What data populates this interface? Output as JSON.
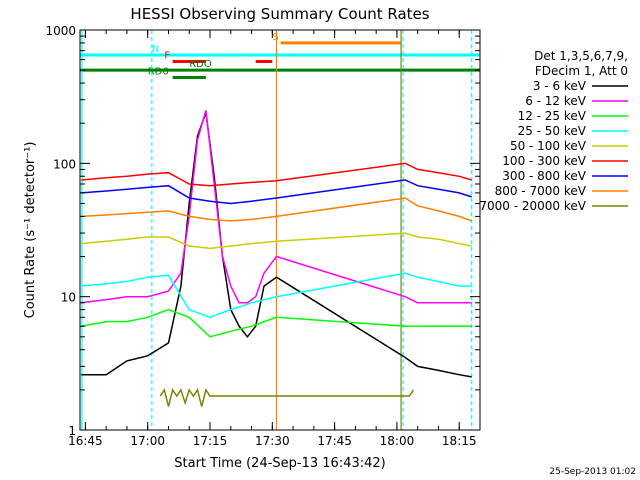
{
  "chart_data": {
    "type": "line",
    "title": "HESSI Observing Summary Count Rates",
    "xlabel": "Start Time (24-Sep-13 16:43:42)",
    "ylabel": "Count Rate (s⁻¹ detector⁻¹)",
    "yscale": "log",
    "xlim": [
      "16:43:42",
      "18:20:00"
    ],
    "ylim": [
      1,
      1000
    ],
    "x_ticks": [
      "16:45",
      "17:00",
      "17:15",
      "17:30",
      "17:45",
      "18:00",
      "18:15"
    ],
    "y_ticks": [
      "1",
      "10",
      "100",
      "1000"
    ],
    "footer_date": "25-Sep-2013 01:02",
    "legend": {
      "header_line1": "Det 1,3,5,6,7,9,",
      "header_line2": "FDecim 1, Att 0",
      "placement": "right"
    },
    "series": [
      {
        "name": "3 - 6 keV",
        "color": "#000000",
        "x": [
          "16:44",
          "16:50",
          "16:55",
          "17:00",
          "17:05",
          "17:08",
          "17:10",
          "17:12",
          "17:14",
          "17:16",
          "17:18",
          "17:20",
          "17:22",
          "17:24",
          "17:26",
          "17:28",
          "17:31",
          "18:02",
          "18:05",
          "18:10",
          "18:15",
          "18:18"
        ],
        "values": [
          2.6,
          2.6,
          3.3,
          3.6,
          4.5,
          12,
          50,
          160,
          240,
          80,
          20,
          8,
          6,
          5,
          6,
          12,
          14,
          3.5,
          3,
          2.8,
          2.6,
          2.5
        ]
      },
      {
        "name": "6 - 12 keV",
        "color": "#ff00ff",
        "x": [
          "16:44",
          "16:50",
          "16:55",
          "17:00",
          "17:05",
          "17:08",
          "17:10",
          "17:12",
          "17:14",
          "17:16",
          "17:18",
          "17:20",
          "17:22",
          "17:24",
          "17:26",
          "17:28",
          "17:31",
          "18:02",
          "18:05",
          "18:10",
          "18:15",
          "18:18"
        ],
        "values": [
          9,
          9.5,
          10,
          10,
          11,
          15,
          40,
          150,
          250,
          70,
          20,
          12,
          9,
          9,
          10,
          15,
          20,
          10,
          9,
          9,
          9,
          9
        ]
      },
      {
        "name": "12 - 25 keV",
        "color": "#00ff00",
        "x": [
          "16:44",
          "16:50",
          "16:55",
          "17:00",
          "17:05",
          "17:10",
          "17:15",
          "17:20",
          "17:25",
          "17:31",
          "18:02",
          "18:05",
          "18:10",
          "18:15",
          "18:18"
        ],
        "values": [
          6,
          6.5,
          6.5,
          7,
          8,
          7,
          5,
          5.5,
          6,
          7,
          6,
          6,
          6,
          6,
          6
        ]
      },
      {
        "name": "25 - 50 keV",
        "color": "#00ffff",
        "x": [
          "16:44",
          "16:50",
          "16:55",
          "17:00",
          "17:05",
          "17:10",
          "17:15",
          "17:20",
          "17:25",
          "17:31",
          "18:02",
          "18:05",
          "18:10",
          "18:15",
          "18:18"
        ],
        "values": [
          12,
          12.5,
          13,
          14,
          14.5,
          8,
          7,
          8,
          9,
          10,
          15,
          14,
          13,
          12,
          12
        ]
      },
      {
        "name": "50 - 100 keV",
        "color": "#cccc00",
        "x": [
          "16:44",
          "16:50",
          "16:55",
          "17:00",
          "17:05",
          "17:10",
          "17:15",
          "17:20",
          "17:25",
          "17:31",
          "18:02",
          "18:05",
          "18:10",
          "18:15",
          "18:18"
        ],
        "values": [
          25,
          26,
          27,
          28,
          28,
          24,
          23,
          24,
          25,
          26,
          30,
          28,
          27,
          25,
          24
        ]
      },
      {
        "name": "100 - 300 keV",
        "color": "#ff0000",
        "x": [
          "16:44",
          "16:50",
          "16:55",
          "17:00",
          "17:05",
          "17:10",
          "17:15",
          "17:20",
          "17:25",
          "17:31",
          "18:02",
          "18:05",
          "18:10",
          "18:15",
          "18:18"
        ],
        "values": [
          75,
          78,
          80,
          83,
          85,
          70,
          68,
          70,
          72,
          74,
          100,
          90,
          85,
          80,
          75
        ]
      },
      {
        "name": "300 - 800 keV",
        "color": "#0000ff",
        "x": [
          "16:44",
          "16:50",
          "16:55",
          "17:00",
          "17:05",
          "17:10",
          "17:15",
          "17:20",
          "17:25",
          "17:31",
          "18:02",
          "18:05",
          "18:10",
          "18:15",
          "18:18"
        ],
        "values": [
          60,
          62,
          64,
          66,
          68,
          55,
          52,
          50,
          52,
          55,
          75,
          68,
          64,
          60,
          56
        ]
      },
      {
        "name": "800 - 7000 keV",
        "color": "#ff8000",
        "x": [
          "16:44",
          "16:50",
          "16:55",
          "17:00",
          "17:05",
          "17:10",
          "17:15",
          "17:20",
          "17:25",
          "17:31",
          "18:02",
          "18:05",
          "18:10",
          "18:15",
          "18:18"
        ],
        "values": [
          40,
          41,
          42,
          43,
          44,
          40,
          38,
          37,
          38,
          40,
          55,
          48,
          44,
          40,
          37
        ]
      },
      {
        "name": "7000 - 20000 keV",
        "color": "#808000",
        "x": [
          "17:03",
          "17:04",
          "17:05",
          "17:06",
          "17:07",
          "17:08",
          "17:09",
          "17:10",
          "17:11",
          "17:12",
          "17:13",
          "17:14",
          "17:15",
          "18:03",
          "18:04"
        ],
        "values": [
          1.8,
          2,
          1.5,
          2,
          1.8,
          2,
          1.6,
          2,
          1.8,
          2,
          1.5,
          2,
          1.8,
          1.8,
          2
        ]
      }
    ],
    "flag_bars": [
      {
        "label": "N",
        "color": "#00ffff",
        "x_start": "16:43:42",
        "x_end": "18:20:00",
        "y": 650,
        "label_x": "17:01"
      },
      {
        "label": "S",
        "color": "#ff8000",
        "x_start": "17:32",
        "x_end": "18:01",
        "y": 800,
        "label_x": "17:30"
      },
      {
        "label": "F",
        "color": "#ff0000",
        "x_start": "17:06",
        "x_end": "17:14",
        "y": 580,
        "label_x": "17:04"
      },
      {
        "label": "",
        "color": "#ff0000",
        "x_start": "17:26",
        "x_end": "17:30",
        "y": 580,
        "label_x": "17:26"
      },
      {
        "label": "RDO",
        "color": "#008000",
        "x_start": "16:43:42",
        "x_end": "18:20:00",
        "y": 500,
        "label_x": "17:10"
      },
      {
        "label": "RD6",
        "color": "#008000",
        "x_start": "17:06",
        "x_end": "17:14",
        "y": 440,
        "label_x": "17:00"
      }
    ],
    "vlines": [
      {
        "x": "16:44:10",
        "color": "#00ffff",
        "style": "solid"
      },
      {
        "x": "17:01",
        "color": "#00ffff",
        "style": "dashed"
      },
      {
        "x": "17:31",
        "color": "#ff8000",
        "style": "solid"
      },
      {
        "x": "18:01",
        "color": "#808000",
        "style": "solid"
      },
      {
        "x": "18:01:30",
        "color": "#00ffff",
        "style": "dashed"
      },
      {
        "x": "18:18",
        "color": "#00ffff",
        "style": "dashed"
      }
    ]
  }
}
